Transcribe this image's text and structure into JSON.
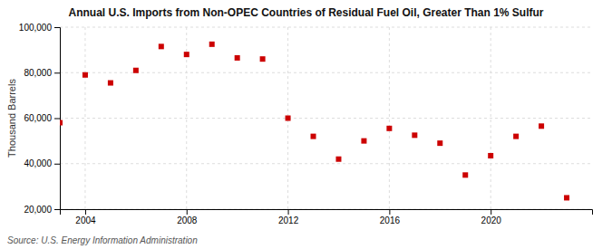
{
  "chart_data": {
    "type": "scatter",
    "title": "Annual U.S. Imports from Non-OPEC Countries of Residual Fuel Oil, Greater Than 1% Sulfur",
    "ylabel": "Thousand Barrels",
    "source": "Source: U.S. Energy Information Administration",
    "color": "#cc0000",
    "marker": "square",
    "x": [
      2003,
      2004,
      2005,
      2006,
      2007,
      2008,
      2009,
      2010,
      2011,
      2012,
      2013,
      2014,
      2015,
      2016,
      2017,
      2018,
      2019,
      2020,
      2021,
      2022,
      2023
    ],
    "values": [
      58000,
      79000,
      75500,
      81000,
      91500,
      88000,
      92500,
      86500,
      86000,
      60000,
      52000,
      42000,
      50000,
      55500,
      52500,
      49000,
      35000,
      43500,
      52000,
      56500,
      25000
    ],
    "xlim": [
      2003,
      2024
    ],
    "ylim": [
      20000,
      100000
    ],
    "xticks": [
      2004,
      2008,
      2012,
      2016,
      2020
    ],
    "yticks": [
      {
        "value": 20000,
        "label": "20,000"
      },
      {
        "value": 40000,
        "label": "40,000"
      },
      {
        "value": 60000,
        "label": "60,000"
      },
      {
        "value": 80000,
        "label": "80,000"
      },
      {
        "value": 100000,
        "label": "100,000"
      }
    ],
    "grid": true
  }
}
